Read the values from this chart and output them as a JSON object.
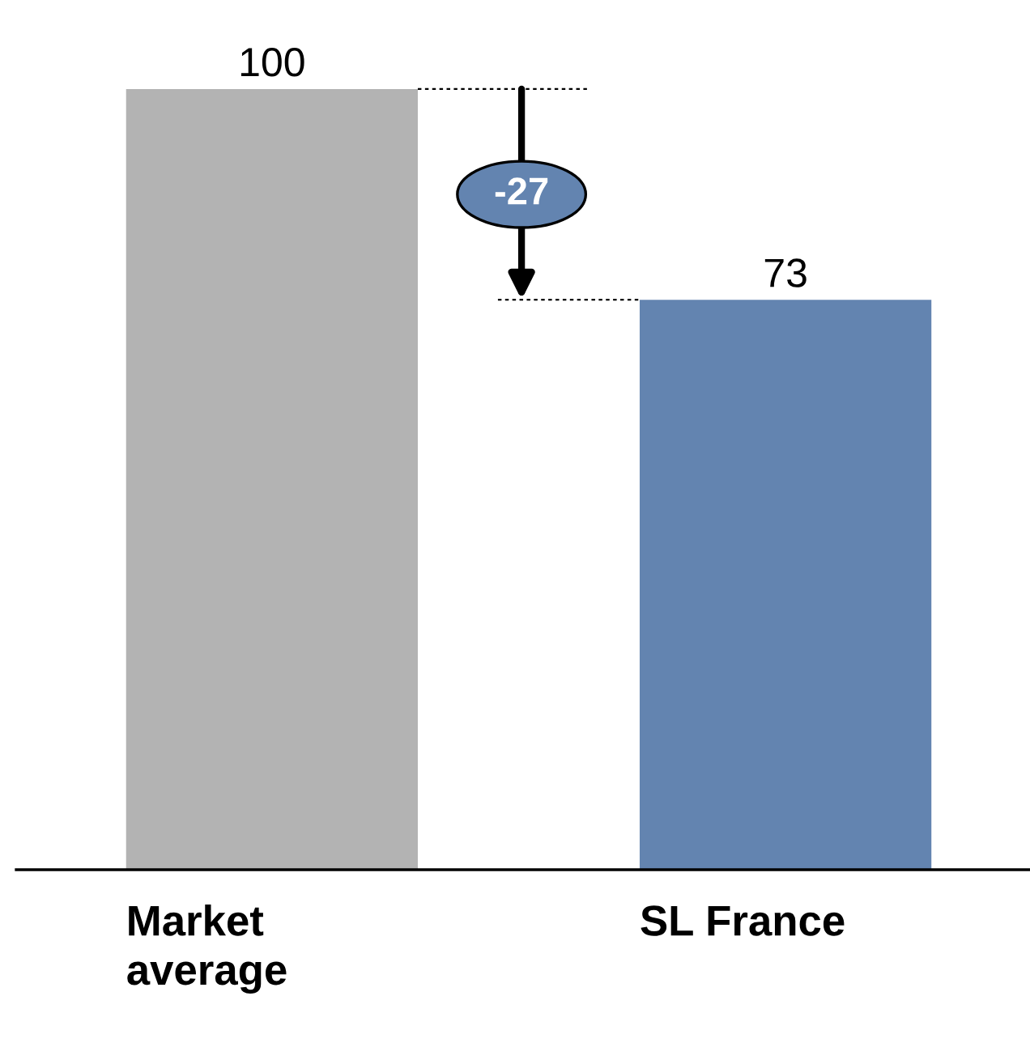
{
  "chart_data": {
    "type": "bar",
    "categories": [
      "Market\naverage",
      "SL France"
    ],
    "values": [
      100,
      73
    ],
    "colors": [
      "#b3b3b3",
      "#6384b0"
    ],
    "data_labels": true,
    "annotations": [
      "-27"
    ]
  }
}
